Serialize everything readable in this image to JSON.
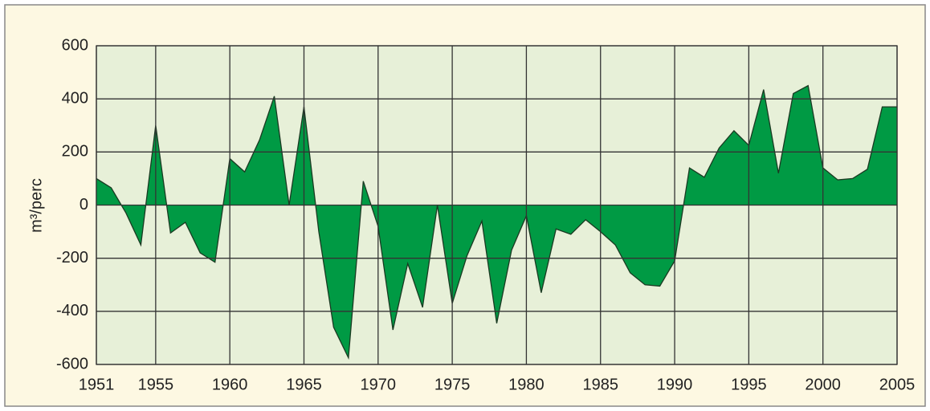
{
  "chart_data": {
    "type": "area",
    "ylabel": "m³/perc",
    "x": [
      1951,
      1952,
      1953,
      1954,
      1955,
      1956,
      1957,
      1958,
      1959,
      1960,
      1961,
      1962,
      1963,
      1964,
      1965,
      1966,
      1967,
      1968,
      1969,
      1970,
      1971,
      1972,
      1973,
      1974,
      1975,
      1976,
      1977,
      1978,
      1979,
      1980,
      1981,
      1982,
      1983,
      1984,
      1985,
      1986,
      1987,
      1988,
      1989,
      1990,
      1991,
      1992,
      1993,
      1994,
      1995,
      1996,
      1997,
      1998,
      1999,
      2000,
      2001,
      2002,
      2003,
      2004,
      2005
    ],
    "values": [
      100,
      65,
      -30,
      -150,
      300,
      -105,
      -65,
      -180,
      -215,
      175,
      125,
      245,
      410,
      0,
      370,
      -100,
      -460,
      -575,
      90,
      -80,
      -470,
      -220,
      -385,
      0,
      -370,
      -190,
      -60,
      -445,
      -170,
      -40,
      -330,
      -90,
      -110,
      -55,
      -100,
      -150,
      -255,
      -300,
      -305,
      -210,
      140,
      105,
      215,
      280,
      225,
      435,
      120,
      420,
      450,
      140,
      95,
      100,
      135,
      370,
      370
    ],
    "color": "#009a44",
    "xlim": [
      1951,
      2005
    ],
    "xticks": [
      1951,
      1955,
      1960,
      1965,
      1970,
      1975,
      1980,
      1985,
      1990,
      1995,
      2000,
      2005
    ],
    "ylim": [
      -600,
      600
    ],
    "yticks": [
      -600,
      -400,
      -200,
      0,
      200,
      400,
      600
    ],
    "grid": true
  }
}
